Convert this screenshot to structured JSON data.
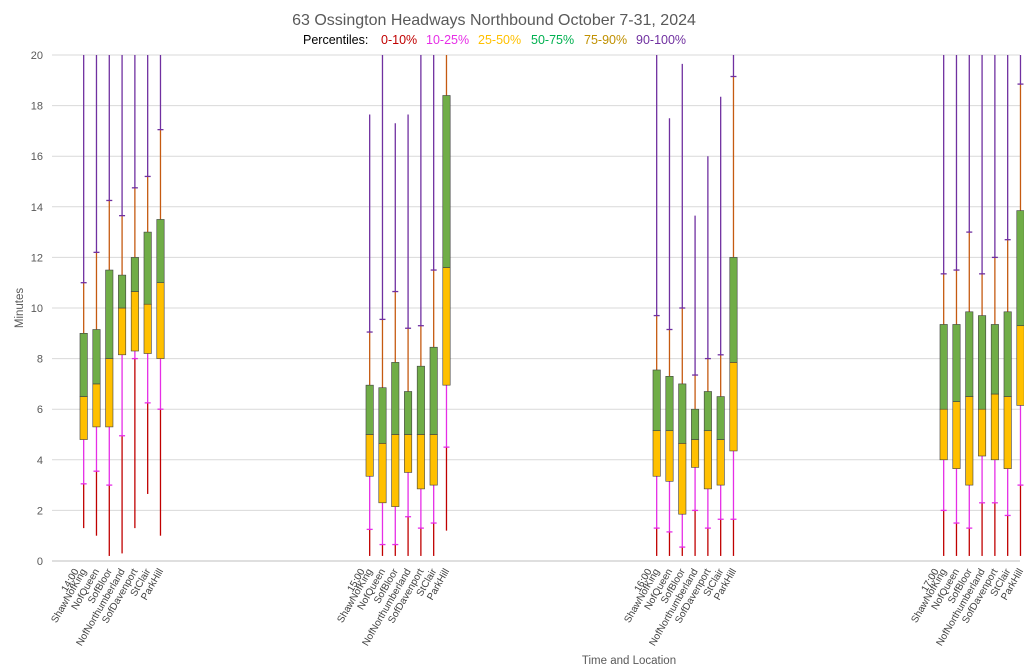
{
  "chart_data": {
    "type": "box",
    "title": "63 Ossington Headways Northbound October 7-31, 2024",
    "legend": {
      "label": "Percentiles:",
      "entries": [
        {
          "name": "0-10%",
          "color": "#c00000"
        },
        {
          "name": "10-25%",
          "color": "#e62ee6"
        },
        {
          "name": "25-50%",
          "color": "#ffc000"
        },
        {
          "name": "50-75%",
          "color": "#00b050"
        },
        {
          "name": "75-90%",
          "color": "#c09000"
        },
        {
          "name": "90-100%",
          "color": "#7030a0"
        }
      ]
    },
    "xlabel": "Time and Location",
    "ylabel": "Minutes",
    "ylim": [
      0,
      20
    ],
    "yticks": [
      0,
      2,
      4,
      6,
      8,
      10,
      12,
      14,
      16,
      18,
      20
    ],
    "grid": true,
    "colors": {
      "p0_10": "#c00000",
      "p10_25": "#e62ee6",
      "p25_50": "#ffc000",
      "p50_75": "#70ad47",
      "p75_90": "#c55a11",
      "p90_100": "#7030a0",
      "box_edge": "#404040",
      "grid": "#d9d9d9"
    },
    "groups": [
      {
        "label": "14:00",
        "boxes": [
          {
            "location": "ShawNofKing",
            "min": 1.3,
            "p10": 3.05,
            "p25": 4.8,
            "median": 6.5,
            "p75": 9.0,
            "p90": 11.0,
            "max": 20
          },
          {
            "location": "NofQueen",
            "min": 1.0,
            "p10": 3.55,
            "p25": 5.3,
            "median": 7.0,
            "p75": 9.15,
            "p90": 12.2,
            "max": 20
          },
          {
            "location": "SofBloor",
            "min": 0.2,
            "p10": 3.0,
            "p25": 5.3,
            "median": 8.0,
            "p75": 11.5,
            "p90": 14.25,
            "max": 20
          },
          {
            "location": "NofNorthumberland",
            "min": 0.3,
            "p10": 4.95,
            "p25": 8.15,
            "median": 10.0,
            "p75": 11.3,
            "p90": 13.65,
            "max": 20
          },
          {
            "location": "SofDavenport",
            "min": 1.3,
            "p10": 8.0,
            "p25": 8.3,
            "median": 10.65,
            "p75": 12.0,
            "p90": 14.75,
            "max": 20
          },
          {
            "location": "StClair",
            "min": 2.65,
            "p10": 6.25,
            "p25": 8.2,
            "median": 10.15,
            "p75": 13.0,
            "p90": 15.2,
            "max": 20
          },
          {
            "location": "ParkHill",
            "min": 1.0,
            "p10": 6.0,
            "p25": 8.0,
            "median": 11.0,
            "p75": 13.5,
            "p90": 17.05,
            "max": 20
          }
        ]
      },
      {
        "label": "15:00",
        "boxes": [
          {
            "location": "ShawNofKing",
            "min": 0.2,
            "p10": 1.25,
            "p25": 3.35,
            "median": 5.0,
            "p75": 6.95,
            "p90": 9.05,
            "max": 17.65
          },
          {
            "location": "NofQueen",
            "min": 0.2,
            "p10": 0.65,
            "p25": 2.3,
            "median": 4.65,
            "p75": 6.85,
            "p90": 9.55,
            "max": 20
          },
          {
            "location": "SofBloor",
            "min": 0.2,
            "p10": 0.65,
            "p25": 2.15,
            "median": 5.0,
            "p75": 7.85,
            "p90": 10.65,
            "max": 17.3
          },
          {
            "location": "NofNorthumberland",
            "min": 0.2,
            "p10": 1.75,
            "p25": 3.5,
            "median": 5.0,
            "p75": 6.7,
            "p90": 9.2,
            "max": 17.65
          },
          {
            "location": "SofDavenport",
            "min": 0.2,
            "p10": 1.3,
            "p25": 2.85,
            "median": 5.0,
            "p75": 7.7,
            "p90": 9.3,
            "max": 20
          },
          {
            "location": "StClair",
            "min": 0.2,
            "p10": 1.5,
            "p25": 3.0,
            "median": 5.0,
            "p75": 8.45,
            "p90": 11.5,
            "max": 20
          },
          {
            "location": "ParkHill",
            "min": 1.2,
            "p10": 4.5,
            "p25": 6.95,
            "median": 11.6,
            "p75": 18.4,
            "p90": 20,
            "max": 20
          }
        ]
      },
      {
        "label": "16:00",
        "boxes": [
          {
            "location": "ShawNofKing",
            "min": 0.2,
            "p10": 1.3,
            "p25": 3.35,
            "median": 5.15,
            "p75": 7.55,
            "p90": 9.7,
            "max": 20
          },
          {
            "location": "NofQueen",
            "min": 0.2,
            "p10": 1.15,
            "p25": 3.15,
            "median": 5.15,
            "p75": 7.3,
            "p90": 9.15,
            "max": 17.5
          },
          {
            "location": "SofBloor",
            "min": 0.2,
            "p10": 0.55,
            "p25": 1.85,
            "median": 4.65,
            "p75": 7.0,
            "p90": 10.0,
            "max": 19.65
          },
          {
            "location": "NofNorthumberland",
            "min": 0.2,
            "p10": 2.0,
            "p25": 3.7,
            "median": 4.8,
            "p75": 6.0,
            "p90": 7.35,
            "max": 13.65
          },
          {
            "location": "SofDavenport",
            "min": 0.2,
            "p10": 1.3,
            "p25": 2.85,
            "median": 5.15,
            "p75": 6.7,
            "p90": 8.0,
            "max": 16.0
          },
          {
            "location": "StClair",
            "min": 0.2,
            "p10": 1.65,
            "p25": 3.0,
            "median": 4.8,
            "p75": 6.5,
            "p90": 8.15,
            "max": 18.35
          },
          {
            "location": "ParkHill",
            "min": 0.2,
            "p10": 1.65,
            "p25": 4.35,
            "median": 7.85,
            "p75": 12.0,
            "p90": 19.15,
            "max": 20
          }
        ]
      },
      {
        "label": "17:00",
        "boxes": [
          {
            "location": "ShawNofKing",
            "min": 0.2,
            "p10": 2.0,
            "p25": 4.0,
            "median": 6.0,
            "p75": 9.35,
            "p90": 11.35,
            "max": 20
          },
          {
            "location": "NofQueen",
            "min": 0.2,
            "p10": 1.5,
            "p25": 3.65,
            "median": 6.3,
            "p75": 9.35,
            "p90": 11.5,
            "max": 20
          },
          {
            "location": "SofBloor",
            "min": 0.2,
            "p10": 1.3,
            "p25": 3.0,
            "median": 6.5,
            "p75": 9.85,
            "p90": 13.0,
            "max": 20
          },
          {
            "location": "NofNorthumberland",
            "min": 0.2,
            "p10": 2.3,
            "p25": 4.15,
            "median": 6.0,
            "p75": 9.7,
            "p90": 11.35,
            "max": 20
          },
          {
            "location": "SofDavenport",
            "min": 0.2,
            "p10": 2.3,
            "p25": 4.0,
            "median": 6.6,
            "p75": 9.35,
            "p90": 12.0,
            "max": 20
          },
          {
            "location": "StClair",
            "min": 0.2,
            "p10": 1.8,
            "p25": 3.65,
            "median": 6.5,
            "p75": 9.85,
            "p90": 12.7,
            "max": 20
          },
          {
            "location": "ParkHill",
            "min": 0.2,
            "p10": 3.0,
            "p25": 6.15,
            "median": 9.3,
            "p75": 13.85,
            "p90": 18.85,
            "max": 20
          }
        ]
      }
    ]
  }
}
